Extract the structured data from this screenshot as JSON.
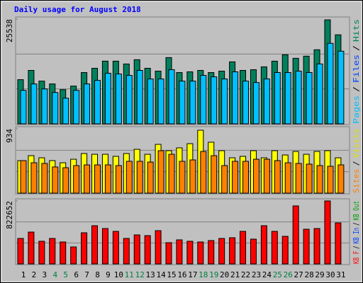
{
  "chart_data": [
    {
      "type": "bar",
      "title": "Daily usage for August 2018",
      "ylim": [
        0,
        25538
      ],
      "yticks": [
        25538
      ],
      "grid": true,
      "legend_separator": "/",
      "legend": [
        {
          "name": "Pages",
          "color": "#00c0ff"
        },
        {
          "name": "Files",
          "color": "#0040ff"
        },
        {
          "name": "Hits",
          "color": "#00805c"
        }
      ],
      "series": [
        {
          "color": "#00805c",
          "values": [
            10770,
            13028,
            10422,
            9727,
            8338,
            9206,
            12506,
            13549,
            15286,
            15286,
            14591,
            15633,
            13549,
            12854,
            16154,
            12506,
            12680,
            13028,
            12506,
            12854,
            15112,
            13028,
            13201,
            13896,
            15286,
            16849,
            15980,
            16502,
            18065,
            25360,
            21713
          ]
        },
        {
          "color": "#00c0ff",
          "values": [
            8164,
            9727,
            8511,
            7643,
            6253,
            8164,
            9727,
            10596,
            12333,
            12159,
            11812,
            13028,
            10943,
            10943,
            13201,
            10422,
            10422,
            11812,
            11464,
            10943,
            12680,
            10422,
            10075,
            10943,
            12506,
            12506,
            12854,
            12506,
            14591,
            19628,
            17717
          ]
        }
      ]
    },
    {
      "type": "bar",
      "ylim": [
        0,
        934
      ],
      "yticks": [
        934
      ],
      "grid": true,
      "legend_separator": "/",
      "legend": [
        {
          "name": "Sites",
          "color": "#ff8000"
        },
        {
          "name": "Visits",
          "color": "#e0e000"
        }
      ],
      "series": [
        {
          "color": "#ffff00",
          "values": [
            472,
            544,
            513,
            472,
            441,
            492,
            575,
            564,
            564,
            534,
            575,
            636,
            564,
            708,
            616,
            657,
            718,
            913,
            739,
            616,
            513,
            534,
            616,
            513,
            616,
            554,
            605,
            564,
            605,
            616,
            513
          ]
        },
        {
          "color": "#ff8000",
          "values": [
            472,
            441,
            431,
            380,
            369,
            400,
            410,
            410,
            410,
            400,
            462,
            462,
            451,
            616,
            564,
            462,
            482,
            605,
            544,
            400,
            462,
            462,
            492,
            492,
            472,
            441,
            431,
            421,
            400,
            390,
            410
          ]
        }
      ]
    },
    {
      "type": "bar",
      "ylim": [
        0,
        822652
      ],
      "yticks": [
        822652
      ],
      "grid": true,
      "legend_separator": "/",
      "legend": [
        {
          "name": "KB F",
          "color": "#ff0000"
        },
        {
          "name": "KB In",
          "color": "#0040ff"
        },
        {
          "name": "KB Out",
          "color": "#00a000"
        }
      ],
      "categories": [
        "1",
        "2",
        "3",
        "4",
        "5",
        "6",
        "7",
        "8",
        "9",
        "10",
        "11",
        "12",
        "13",
        "14",
        "15",
        "16",
        "17",
        "18",
        "19",
        "20",
        "21",
        "22",
        "23",
        "24",
        "25",
        "26",
        "27",
        "28",
        "29",
        "30",
        "31"
      ],
      "x_label_colors": [
        "#000",
        "#000",
        "#000",
        "#008040",
        "#008040",
        "#000",
        "#000",
        "#000",
        "#000",
        "#000",
        "#008040",
        "#008040",
        "#000",
        "#000",
        "#000",
        "#000",
        "#000",
        "#008040",
        "#008040",
        "#000",
        "#000",
        "#000",
        "#000",
        "#000",
        "#008040",
        "#008040",
        "#000",
        "#000",
        "#000",
        "#000",
        "#000"
      ],
      "series": [
        {
          "color": "#ff0000",
          "values": [
            332748,
            415935,
            295776,
            332748,
            286533,
            221832,
            406692,
            499122,
            462150,
            425178,
            332748,
            378963,
            369720,
            434421,
            277290,
            314262,
            295776,
            286533,
            305019,
            332748,
            341991,
            425178,
            323505,
            499122,
            425178,
            360477,
            757926,
            452907,
            462150,
            822627,
            536094
          ]
        }
      ]
    }
  ]
}
